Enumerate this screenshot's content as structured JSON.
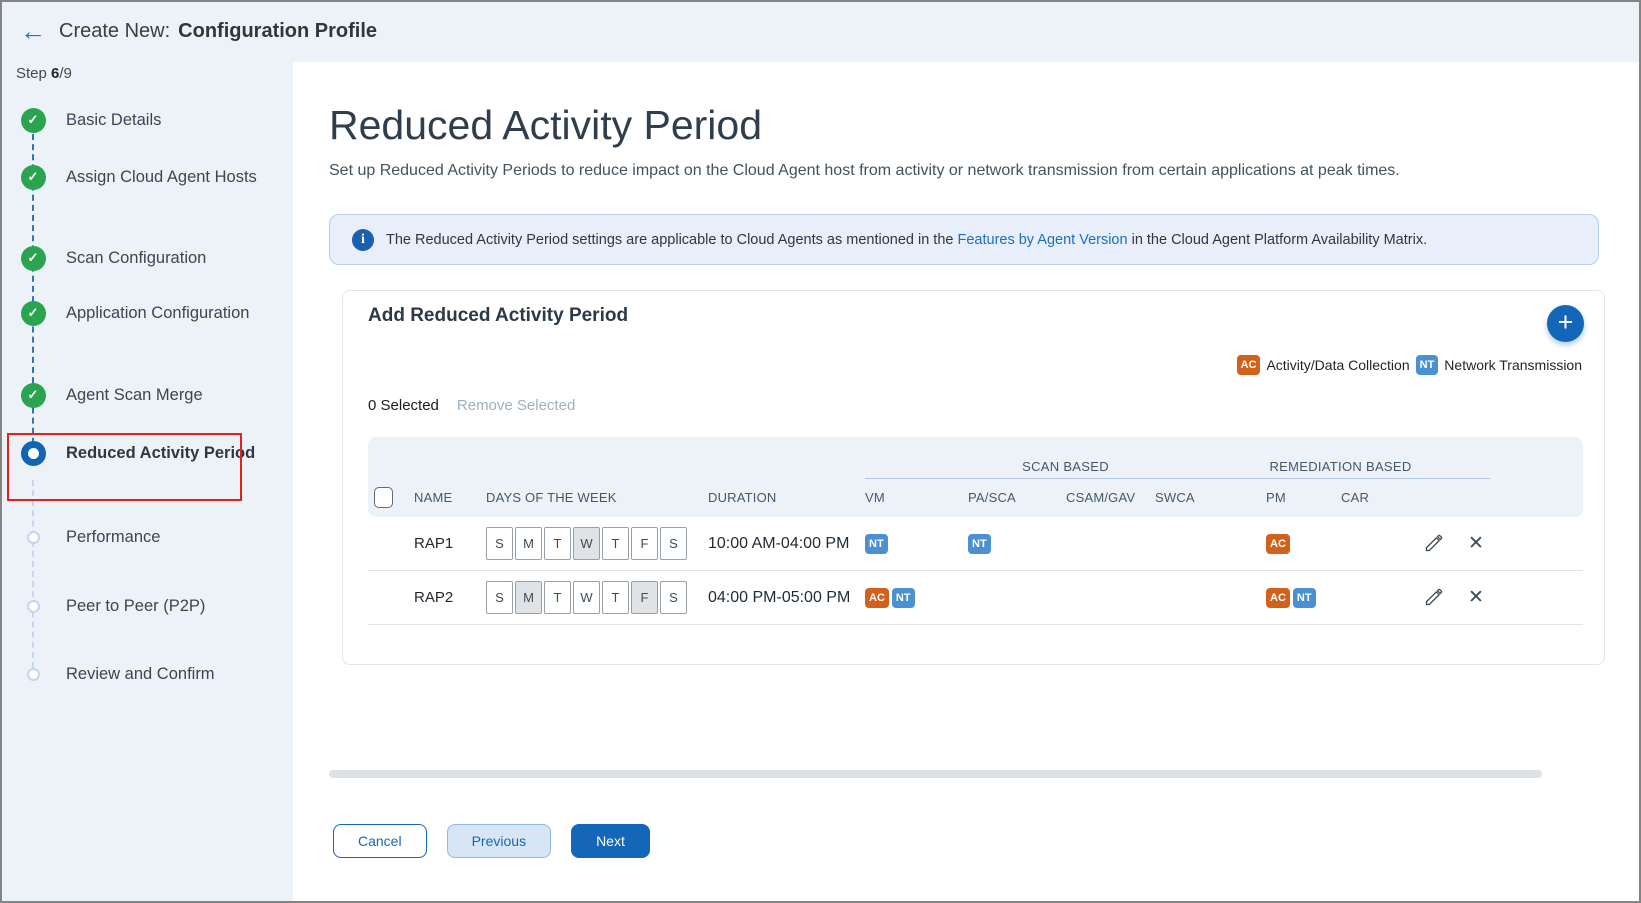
{
  "header": {
    "title_prefix": "Create New:",
    "title": "Configuration Profile"
  },
  "stepper": {
    "progress_prefix": "Step ",
    "current_step": "6",
    "separator": "/",
    "total_steps": "9",
    "steps": [
      {
        "label": "Basic Details",
        "status": "done"
      },
      {
        "label": "Assign Cloud Agent Hosts",
        "status": "done"
      },
      {
        "label": "Scan Configuration",
        "status": "done"
      },
      {
        "label": "Application Configuration",
        "status": "done"
      },
      {
        "label": "Agent Scan Merge",
        "status": "done"
      },
      {
        "label": "Reduced Activity Period",
        "status": "current",
        "highlighted": true
      },
      {
        "label": "Performance",
        "status": "todo"
      },
      {
        "label": "Peer to Peer (P2P)",
        "status": "todo"
      },
      {
        "label": "Review and Confirm",
        "status": "todo"
      }
    ]
  },
  "page": {
    "title": "Reduced Activity Period",
    "subtitle": "Set up Reduced Activity Periods to reduce impact on the Cloud Agent host from activity or network transmission from certain applications at peak times."
  },
  "banner": {
    "text_before": "The Reduced Activity Period settings are applicable to Cloud Agents as mentioned in the ",
    "link_text": "Features by Agent Version",
    "text_after": " in the Cloud Agent Platform Availability Matrix."
  },
  "card": {
    "title": "Add Reduced Activity Period",
    "legend": [
      {
        "code": "AC",
        "label": "Activity/Data Collection",
        "color": "#d2611c"
      },
      {
        "code": "NT",
        "label": "Network Transmission",
        "color": "#4a90d2"
      }
    ],
    "selected_count": "0 Selected",
    "remove_selected": "Remove Selected"
  },
  "table": {
    "group_headers": [
      {
        "label": "SCAN BASED"
      },
      {
        "label": "REMEDIATION BASED"
      }
    ],
    "columns": [
      "NAME",
      "DAYS OF THE WEEK",
      "DURATION",
      "VM",
      "PA/SCA",
      "CSAM/GAV",
      "SWCA",
      "PM",
      "CAR"
    ],
    "rows": [
      {
        "name": "RAP1",
        "days": [
          "S",
          "M",
          "T",
          "W",
          "T",
          "F",
          "S"
        ],
        "selected_days": [
          3
        ],
        "duration": "10:00 AM-04:00 PM",
        "vm": [
          "NT"
        ],
        "pa_sca": [
          "NT"
        ],
        "csam_gav": [],
        "swca": [],
        "pm": [
          "AC"
        ],
        "car": []
      },
      {
        "name": "RAP2",
        "days": [
          "S",
          "M",
          "T",
          "W",
          "T",
          "F",
          "S"
        ],
        "selected_days": [
          1,
          5
        ],
        "duration": "04:00 PM-05:00 PM",
        "vm": [
          "AC",
          "NT"
        ],
        "pa_sca": [],
        "csam_gav": [],
        "swca": [],
        "pm": [
          "AC",
          "NT"
        ],
        "car": []
      }
    ]
  },
  "footer": {
    "cancel": "Cancel",
    "previous": "Previous",
    "next": "Next"
  },
  "colors": {
    "accent_blue": "#1467b8",
    "badge_ac": "#d2611c",
    "badge_nt": "#4a90d2",
    "done_green": "#2aa44f",
    "highlight_red": "#e0241b"
  }
}
